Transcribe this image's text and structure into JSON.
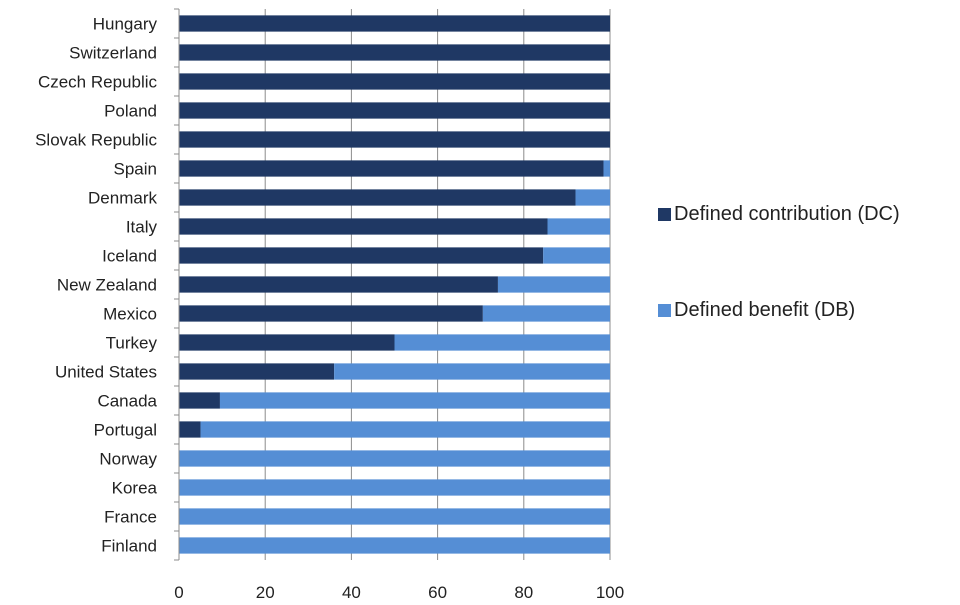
{
  "chart_data": {
    "type": "bar",
    "orientation": "horizontal",
    "stacked": true,
    "categories": [
      "Hungary",
      "Switzerland",
      "Czech Republic",
      "Poland",
      "Slovak Republic",
      "Spain",
      "Denmark",
      "Italy",
      "Iceland",
      "New Zealand",
      "Mexico",
      "Turkey",
      "United States",
      "Canada",
      "Portugal",
      "Norway",
      "Korea",
      "France",
      "Finland"
    ],
    "series": [
      {
        "name": "Defined contribution (DC)",
        "color": "#1f3864",
        "values": [
          100,
          100,
          100,
          100,
          100,
          98.5,
          92,
          85.5,
          84.5,
          74,
          70.5,
          50,
          36,
          9.5,
          5,
          0,
          0,
          0,
          0
        ]
      },
      {
        "name": "Defined benefit (DB)",
        "color": "#558ed5",
        "values": [
          0,
          0,
          0,
          0,
          0,
          1.5,
          8,
          14.5,
          15.5,
          26,
          29.5,
          50,
          64,
          90.5,
          95,
          100,
          100,
          100,
          100
        ]
      }
    ],
    "xlim": [
      0,
      100
    ],
    "xticks": [
      "0",
      "20",
      "40",
      "60",
      "80",
      "100"
    ],
    "grid": true,
    "legend_position": "right"
  }
}
